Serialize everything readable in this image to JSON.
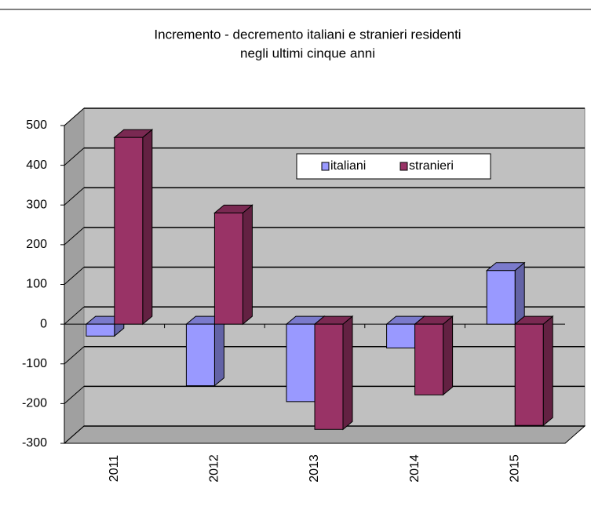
{
  "chart_data": {
    "type": "bar3d",
    "title": [
      "Incremento - decremento italiani e stranieri residenti",
      "negli ultimi cinque anni"
    ],
    "categories": [
      "2011",
      "2012",
      "2013",
      "2014",
      "2015"
    ],
    "series": [
      {
        "name": "italiani",
        "color": "#9999ff",
        "values": [
          -30,
          -155,
          -195,
          -60,
          135
        ]
      },
      {
        "name": "stranieri",
        "color": "#993366",
        "values": [
          470,
          280,
          -265,
          -178,
          -255
        ]
      }
    ],
    "ylim": [
      -300,
      500
    ],
    "yticks": [
      -300,
      -200,
      -100,
      0,
      100,
      200,
      300,
      400,
      500
    ],
    "grid": true,
    "legend": "top-right"
  }
}
